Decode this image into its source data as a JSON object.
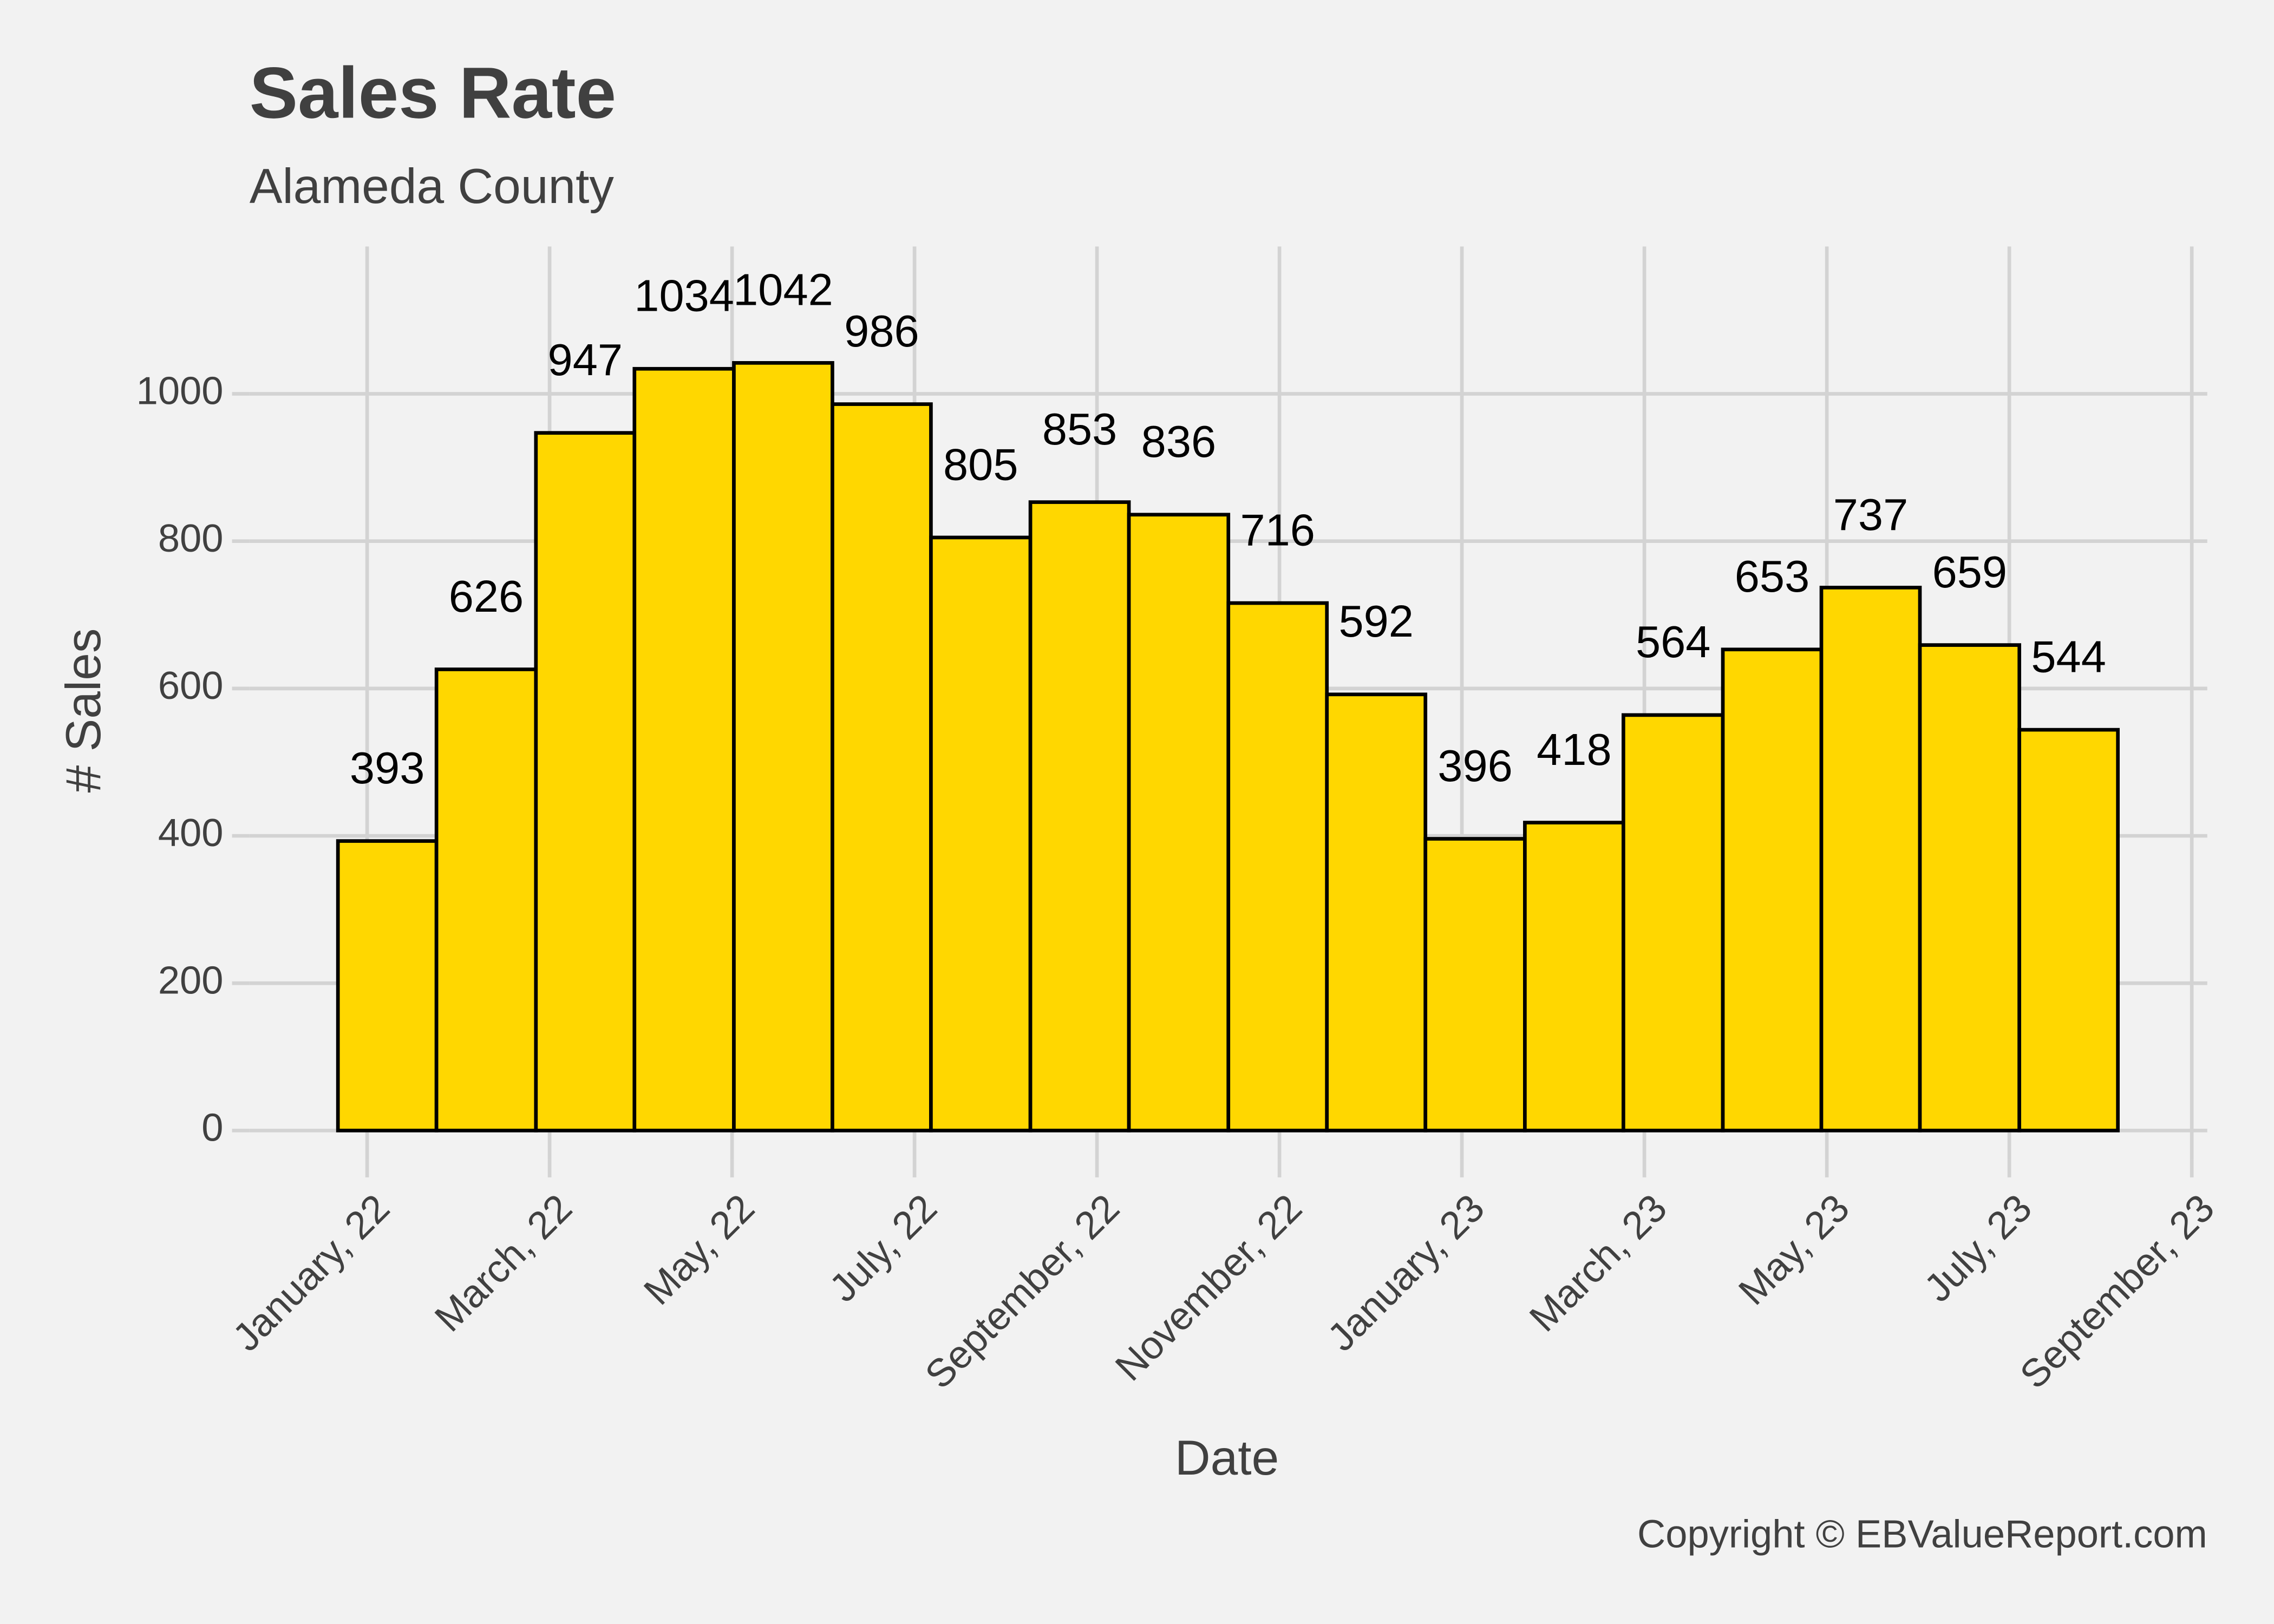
{
  "chart_data": {
    "type": "histogram",
    "title": "Sales Rate",
    "subtitle": "Alameda County",
    "x_label": "Date",
    "y_label": "# Sales",
    "caption": "Copyright  © EBValueReport.com",
    "bins": [
      -0.32,
      0.76,
      1.85,
      2.93,
      4.02,
      5.1,
      6.18,
      7.27,
      8.35,
      9.44,
      10.52,
      11.6,
      12.69,
      13.77,
      14.86,
      15.94,
      17.02,
      18.11,
      19.19
    ],
    "values": [
      393,
      626,
      947,
      1034,
      1042,
      986,
      805,
      853,
      836,
      716,
      592,
      396,
      418,
      564,
      653,
      737,
      659,
      544
    ],
    "color": "#ffd700",
    "edge_color": "#000000",
    "xlim": [
      -1.29,
      20.17
    ],
    "xticks": [
      {
        "value": 0,
        "label": "January, 22"
      },
      {
        "value": 2,
        "label": "March, 22"
      },
      {
        "value": 4,
        "label": "May, 22"
      },
      {
        "value": 6,
        "label": "July, 22"
      },
      {
        "value": 8,
        "label": "September, 22"
      },
      {
        "value": 10,
        "label": "November, 22"
      },
      {
        "value": 12,
        "label": "January, 23"
      },
      {
        "value": 14,
        "label": "March, 23"
      },
      {
        "value": 16,
        "label": "May, 23"
      },
      {
        "value": 18,
        "label": "July, 23"
      },
      {
        "value": 20,
        "label": "September, 23"
      }
    ],
    "ylim": [
      -40,
      1200
    ],
    "yticks": [
      0,
      200,
      400,
      600,
      800,
      1000
    ],
    "grid": true
  }
}
